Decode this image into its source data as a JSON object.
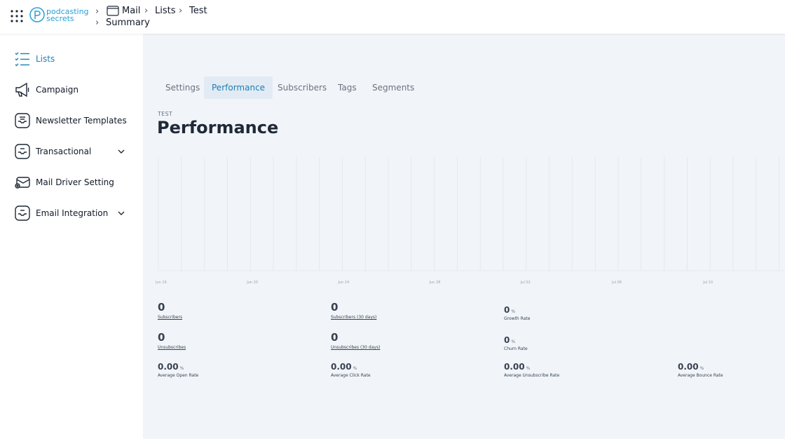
{
  "header": {
    "logo_text": [
      "podcasting",
      "secrets"
    ],
    "breadcrumbs": [
      "Mail",
      "Lists",
      "Test",
      "Summary"
    ]
  },
  "sidebar": {
    "items": [
      {
        "label": "Lists",
        "icon": "list-icon",
        "active": true
      },
      {
        "label": "Campaign",
        "icon": "megaphone-icon"
      },
      {
        "label": "Newsletter Templates",
        "icon": "newsletter-template-icon"
      },
      {
        "label": "Transactional",
        "icon": "inbox-icon",
        "expandable": true
      },
      {
        "label": "Mail Driver Setting",
        "icon": "mail-driver-icon"
      },
      {
        "label": "Email Integration",
        "icon": "inbox-icon",
        "expandable": true
      }
    ]
  },
  "tabs": [
    {
      "label": "Settings"
    },
    {
      "label": "Performance",
      "active": true
    },
    {
      "label": "Subscribers"
    },
    {
      "label": "Tags"
    },
    {
      "label": "Segments"
    }
  ],
  "page": {
    "overline": "TEST",
    "title": "Performance"
  },
  "chart_data": {
    "type": "line",
    "x_tick_labels": [
      "Jun 16",
      "Jun 20",
      "Jun 24",
      "Jun 28",
      "Jul 02",
      "Jul 06",
      "Jul 10"
    ],
    "series": [],
    "grid": true
  },
  "stats": {
    "subscribers": {
      "value": "0",
      "label": "Subscribers"
    },
    "subscribers_30": {
      "value": "0",
      "label": "Subscribers (30 days)"
    },
    "growth_rate": {
      "value": "0",
      "unit": "%",
      "label": "Growth Rate"
    },
    "unsubscribes": {
      "value": "0",
      "label": "Unsubscribes"
    },
    "unsubscribes_30": {
      "value": "0",
      "label": "Unsubscribes (30 days)"
    },
    "churn_rate": {
      "value": "0",
      "unit": "%",
      "label": "Churn Rate"
    },
    "avg_open_rate": {
      "value": "0.00",
      "unit": "%",
      "label": "Average Open Rate"
    },
    "avg_click_rate": {
      "value": "0.00",
      "unit": "%",
      "label": "Average Click Rate"
    },
    "avg_unsubscribe_rate": {
      "value": "0.00",
      "unit": "%",
      "label": "Average Unsubscribe Rate"
    },
    "avg_bounce_rate": {
      "value": "0.00",
      "unit": "%",
      "label": "Average Bounce Rate"
    }
  },
  "colors": {
    "accent": "#1b7fb4",
    "logo": "#2a9fd6",
    "main_bg": "#f1f5f9"
  }
}
